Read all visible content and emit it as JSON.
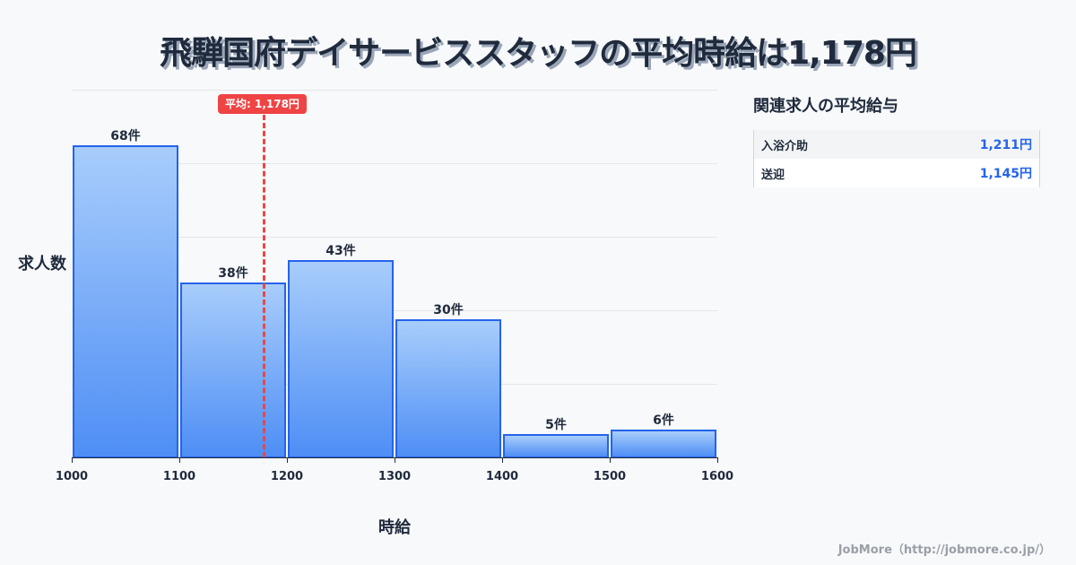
{
  "title": "飛騨国府デイサービススタッフの平均時給は1,178円",
  "average_badge": "平均: 1,178円",
  "axis": {
    "ylabel": "求人数",
    "xlabel": "時給",
    "xticks": [
      "1000",
      "1100",
      "1200",
      "1300",
      "1400",
      "1500",
      "1600"
    ]
  },
  "bars": [
    {
      "label": "68件",
      "value": 68
    },
    {
      "label": "38件",
      "value": 38
    },
    {
      "label": "43件",
      "value": 43
    },
    {
      "label": "30件",
      "value": 30
    },
    {
      "label": "5件",
      "value": 5
    },
    {
      "label": "6件",
      "value": 6
    }
  ],
  "side_panel": {
    "title": "関連求人の平均給与",
    "rows": [
      {
        "name": "入浴介助",
        "value": "1,211円"
      },
      {
        "name": "送迎",
        "value": "1,145円"
      }
    ]
  },
  "footer": "JobMore（http://jobmore.co.jp/）",
  "colors": {
    "bar_fill_top": "#a8cdfb",
    "bar_fill_bottom": "#4e8ef5",
    "bar_border": "#2563eb",
    "average_line": "#ef4444",
    "side_value": "#2563eb"
  },
  "chart_data": {
    "type": "bar",
    "title": "飛騨国府デイサービススタッフの平均時給は1,178円",
    "xlabel": "時給",
    "ylabel": "求人数",
    "categories": [
      "1000-1100",
      "1100-1200",
      "1200-1300",
      "1300-1400",
      "1400-1500",
      "1500-1600"
    ],
    "bin_edges": [
      1000,
      1100,
      1200,
      1300,
      1400,
      1500,
      1600
    ],
    "values": [
      68,
      38,
      43,
      30,
      5,
      6
    ],
    "data_labels": [
      "68件",
      "38件",
      "43件",
      "30件",
      "5件",
      "6件"
    ],
    "xlim": [
      1000,
      1600
    ],
    "ylim": [
      0,
      80
    ],
    "grid": {
      "y": true,
      "x": false
    },
    "annotations": [
      {
        "type": "vline",
        "x": 1178,
        "label": "平均: 1,178円",
        "style": "dashed",
        "color": "#ef4444"
      }
    ],
    "legend": null
  }
}
